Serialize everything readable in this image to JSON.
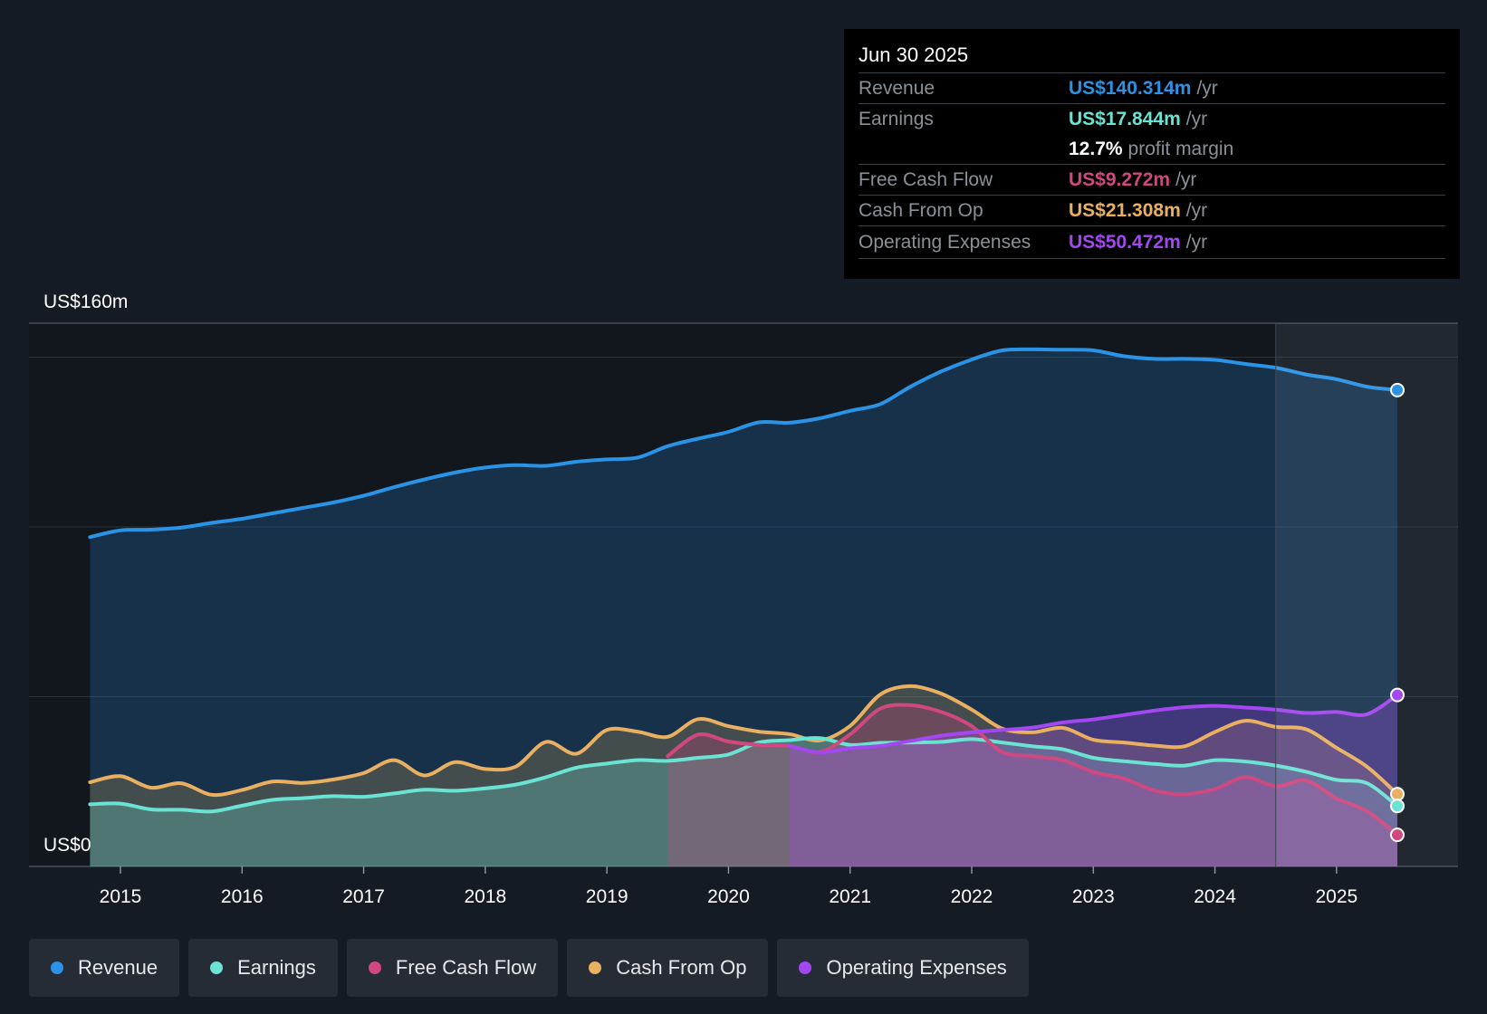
{
  "tooltip": {
    "date": "Jun 30 2025",
    "rows": [
      {
        "label": "Revenue",
        "value": "US$140.314m",
        "unit": "/yr"
      },
      {
        "label": "Earnings",
        "value": "US$17.844m",
        "unit": "/yr"
      },
      {
        "label": "",
        "value": "12.7%",
        "unit": "profit margin"
      },
      {
        "label": "Free Cash Flow",
        "value": "US$9.272m",
        "unit": "/yr"
      },
      {
        "label": "Cash From Op",
        "value": "US$21.308m",
        "unit": "/yr"
      },
      {
        "label": "Operating Expenses",
        "value": "US$50.472m",
        "unit": "/yr"
      }
    ]
  },
  "legend": [
    {
      "label": "Revenue",
      "color": "#2a93e6"
    },
    {
      "label": "Earnings",
      "color": "#6be3d3"
    },
    {
      "label": "Free Cash Flow",
      "color": "#d0487f"
    },
    {
      "label": "Cash From Op",
      "color": "#e8b060"
    },
    {
      "label": "Operating Expenses",
      "color": "#a347f0"
    }
  ],
  "colors": {
    "revenue": "#2a93e6",
    "earnings": "#6be3d3",
    "fcf": "#d0487f",
    "cfo": "#e8b060",
    "opex": "#a347f0"
  },
  "chart_data": {
    "type": "area",
    "title": "",
    "ylabel_top": "US$160m",
    "ylabel_bottom": "US$0",
    "ylim": [
      0,
      160
    ],
    "xlim": [
      2014.5,
      2025.5
    ],
    "xticks": [
      "2015",
      "2016",
      "2017",
      "2018",
      "2019",
      "2020",
      "2021",
      "2022",
      "2023",
      "2024",
      "2025"
    ],
    "forecast_start": 2024.5,
    "series": [
      {
        "name": "Revenue",
        "key": "revenue",
        "x": [
          2014.75,
          2015.0,
          2015.25,
          2015.5,
          2015.75,
          2016.0,
          2016.25,
          2016.5,
          2016.75,
          2017.0,
          2017.25,
          2017.5,
          2017.75,
          2018.0,
          2018.25,
          2018.5,
          2018.75,
          2019.0,
          2019.25,
          2019.5,
          2019.75,
          2020.0,
          2020.25,
          2020.5,
          2020.75,
          2021.0,
          2021.25,
          2021.5,
          2021.75,
          2022.0,
          2022.25,
          2022.5,
          2022.75,
          2023.0,
          2023.25,
          2023.5,
          2023.75,
          2024.0,
          2024.25,
          2024.5,
          2024.75,
          2025.0,
          2025.25,
          2025.5
        ],
        "values": [
          97,
          99,
          99.2,
          99.8,
          101.2,
          102.4,
          104,
          105.6,
          107.2,
          109.2,
          111.7,
          114,
          116,
          117.5,
          118.2,
          118,
          119.2,
          119.9,
          120.4,
          123.8,
          126,
          128,
          130.8,
          130.7,
          132,
          134.2,
          136.2,
          141.4,
          145.8,
          149.3,
          152,
          152.3,
          152.2,
          152,
          150.3,
          149.5,
          149.5,
          149.2,
          148,
          146.9,
          144.9,
          143.5,
          141.3,
          140.3
        ]
      },
      {
        "name": "Earnings",
        "key": "earnings",
        "x": [
          2014.75,
          2015.0,
          2015.25,
          2015.5,
          2015.75,
          2016.0,
          2016.25,
          2016.5,
          2016.75,
          2017.0,
          2017.25,
          2017.5,
          2017.75,
          2018.0,
          2018.25,
          2018.5,
          2018.75,
          2019.0,
          2019.25,
          2019.5,
          2019.75,
          2020.0,
          2020.25,
          2020.5,
          2020.75,
          2021.0,
          2021.25,
          2021.5,
          2021.75,
          2022.0,
          2022.25,
          2022.5,
          2022.75,
          2023.0,
          2023.25,
          2023.5,
          2023.75,
          2024.0,
          2024.25,
          2024.5,
          2024.75,
          2025.0,
          2025.25,
          2025.5
        ],
        "values": [
          18.3,
          18.5,
          16.8,
          16.7,
          16.2,
          17.9,
          19.6,
          20.1,
          20.7,
          20.5,
          21.5,
          22.6,
          22.3,
          23,
          24.1,
          26.3,
          29.1,
          30.3,
          31.3,
          31.1,
          32,
          33,
          36.5,
          37.2,
          37.8,
          35.8,
          36.4,
          36.5,
          36.7,
          37.5,
          36.5,
          35.4,
          34.5,
          32,
          31,
          30.2,
          29.7,
          31.3,
          30.9,
          29.7,
          27.9,
          25.5,
          24.5,
          17.8
        ]
      },
      {
        "name": "Free Cash Flow",
        "key": "fcf",
        "x": [
          2019.5,
          2019.75,
          2020.0,
          2020.25,
          2020.5,
          2020.75,
          2021.0,
          2021.25,
          2021.5,
          2021.75,
          2022.0,
          2022.25,
          2022.5,
          2022.75,
          2023.0,
          2023.25,
          2023.5,
          2023.75,
          2024.0,
          2024.25,
          2024.5,
          2024.75,
          2025.0,
          2025.25,
          2025.5
        ],
        "values": [
          32.5,
          38.8,
          36.8,
          35.8,
          35.5,
          33.7,
          38.9,
          46.5,
          47.5,
          45.5,
          41.3,
          33.7,
          32.5,
          31.3,
          27.8,
          25.9,
          22.4,
          21.3,
          22.8,
          26.3,
          23.6,
          25.3,
          20,
          16.3,
          9.3
        ]
      },
      {
        "name": "Cash From Op",
        "key": "cfo",
        "x": [
          2014.75,
          2015.0,
          2015.25,
          2015.5,
          2015.75,
          2016.0,
          2016.25,
          2016.5,
          2016.75,
          2017.0,
          2017.25,
          2017.5,
          2017.75,
          2018.0,
          2018.25,
          2018.5,
          2018.75,
          2019.0,
          2019.25,
          2019.5,
          2019.75,
          2020.0,
          2020.25,
          2020.5,
          2020.75,
          2021.0,
          2021.25,
          2021.5,
          2021.75,
          2022.0,
          2022.25,
          2022.5,
          2022.75,
          2023.0,
          2023.25,
          2023.5,
          2023.75,
          2024.0,
          2024.25,
          2024.5,
          2024.75,
          2025.0,
          2025.25,
          2025.5
        ],
        "values": [
          24.8,
          26.6,
          23.2,
          24.5,
          21.1,
          22.5,
          25,
          24.6,
          25.6,
          27.5,
          31.3,
          26.8,
          30.7,
          28.7,
          29.4,
          36.7,
          33.2,
          40.2,
          39.7,
          38.2,
          43.4,
          41.3,
          39.7,
          39,
          37.1,
          41.4,
          50.7,
          53.1,
          50.9,
          46.2,
          40.6,
          39.5,
          40.8,
          37.3,
          36.5,
          35.6,
          35.4,
          39.6,
          42.9,
          41.1,
          40.4,
          34.9,
          29.4,
          21.3
        ]
      },
      {
        "name": "Operating Expenses",
        "key": "opex",
        "x": [
          2020.5,
          2020.75,
          2021.0,
          2021.25,
          2021.5,
          2021.75,
          2022.0,
          2022.25,
          2022.5,
          2022.75,
          2023.0,
          2023.25,
          2023.5,
          2023.75,
          2024.0,
          2024.25,
          2024.5,
          2024.75,
          2025.0,
          2025.25,
          2025.5
        ],
        "values": [
          35.5,
          33.6,
          34.8,
          35.5,
          37,
          38.5,
          39.5,
          40.2,
          40.9,
          42.4,
          43.3,
          44.6,
          45.9,
          46.9,
          47.3,
          46.8,
          46.2,
          45.2,
          45.5,
          44.8,
          50.5
        ]
      }
    ]
  }
}
